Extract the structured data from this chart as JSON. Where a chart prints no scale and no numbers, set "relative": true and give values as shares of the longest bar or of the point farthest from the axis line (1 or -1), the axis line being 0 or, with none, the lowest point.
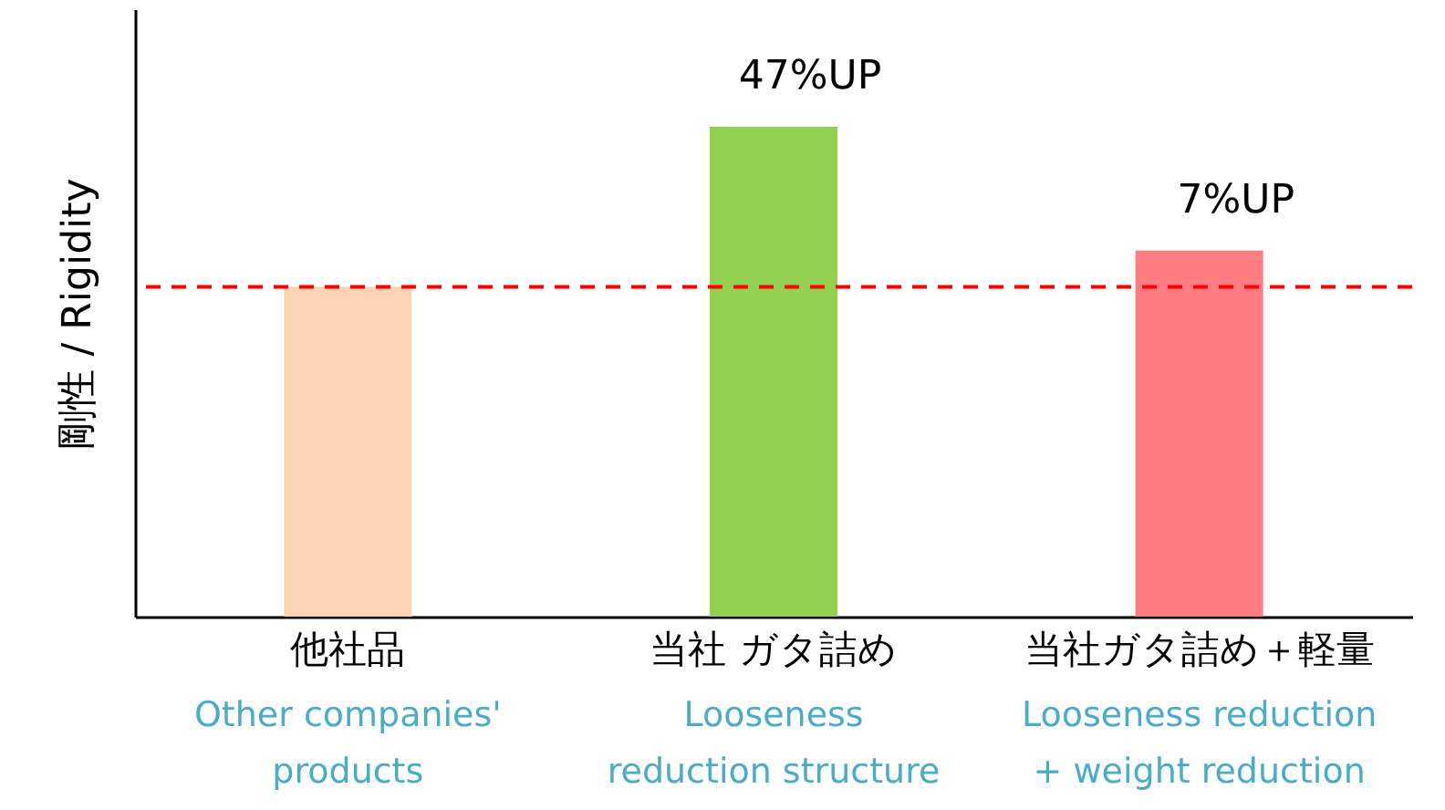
{
  "chart_data": {
    "type": "bar",
    "relative": true,
    "ylabel": "剛性 / Rigidity",
    "categories": [
      "他社品\nOther companies'\nproducts",
      "当社 ガタ詰め\nLooseness\nreduction structure",
      "当社ガタ詰め＋軽量\nLooseness reduction\n+ weight reduction"
    ],
    "values": [
      0.673,
      1,
      0.747
    ],
    "colors": [
      "#fcd5b5",
      "#92d050",
      "#ff7c80"
    ],
    "ref_lines": [
      {
        "axis": "y",
        "value": 0.673,
        "color": "#ff0000",
        "line_style": "dashed"
      }
    ],
    "annotations": [
      {
        "text": "47%UP",
        "x": "当社 ガタ詰め\nLooseness\nreduction structure",
        "y": 1
      },
      {
        "text": "7%UP",
        "x": "当社ガタ詰め＋軽量\nLooseness reduction\n+ weight reduction",
        "y": 0.747
      }
    ],
    "grid": false
  }
}
